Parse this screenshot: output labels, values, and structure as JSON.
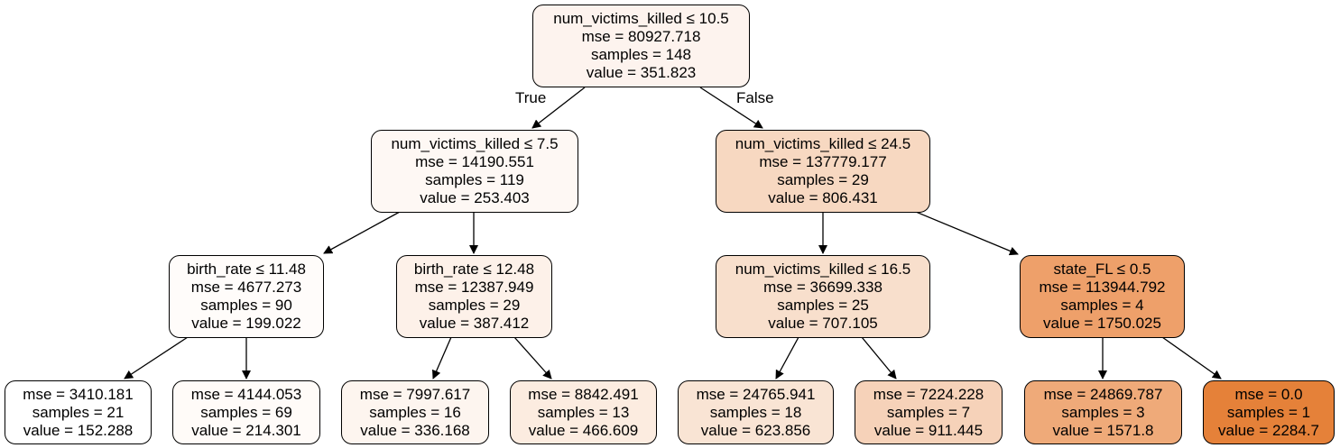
{
  "tree": {
    "nodes": {
      "n0": {
        "split": "num_victims_killed ≤ 10.5",
        "mse": "mse = 80927.718",
        "samples": "samples = 148",
        "value": "value = 351.823",
        "fill": "#fdf3ee"
      },
      "n1": {
        "split": "num_victims_killed ≤ 7.5",
        "mse": "mse = 14190.551",
        "samples": "samples = 119",
        "value": "value = 253.403",
        "fill": "#fef8f4"
      },
      "n2": {
        "split": "num_victims_killed ≤ 24.5",
        "mse": "mse = 137779.177",
        "samples": "samples = 29",
        "value": "value = 806.431",
        "fill": "#f7d8c1"
      },
      "n3": {
        "split": "birth_rate ≤ 11.48",
        "mse": "mse = 4677.273",
        "samples": "samples = 90",
        "value": "value = 199.022",
        "fill": "#fffcfa"
      },
      "n4": {
        "split": "birth_rate ≤ 12.48",
        "mse": "mse = 12387.949",
        "samples": "samples = 29",
        "value": "value = 387.412",
        "fill": "#fdf1e9"
      },
      "n5": {
        "split": "num_victims_killed ≤ 16.5",
        "mse": "mse = 36699.338",
        "samples": "samples = 25",
        "value": "value = 707.105",
        "fill": "#f8dfcc"
      },
      "n6": {
        "split": "state_FL ≤ 0.5",
        "mse": "mse = 113944.792",
        "samples": "samples = 4",
        "value": "value = 1750.025",
        "fill": "#eea06a"
      },
      "n7": {
        "split": "",
        "mse": "mse = 3410.181",
        "samples": "samples = 21",
        "value": "value = 152.288",
        "fill": "#ffffff"
      },
      "n8": {
        "split": "",
        "mse": "mse = 4144.053",
        "samples": "samples = 69",
        "value": "value = 214.301",
        "fill": "#fffbf8"
      },
      "n9": {
        "split": "",
        "mse": "mse = 7997.617",
        "samples": "samples = 16",
        "value": "value = 336.168",
        "fill": "#fdf5ef"
      },
      "n10": {
        "split": "",
        "mse": "mse = 8842.491",
        "samples": "samples = 13",
        "value": "value = 466.609",
        "fill": "#fcece0"
      },
      "n11": {
        "split": "",
        "mse": "mse = 24765.941",
        "samples": "samples = 18",
        "value": "value = 623.856",
        "fill": "#f9e4d4"
      },
      "n12": {
        "split": "",
        "mse": "mse = 7224.228",
        "samples": "samples = 7",
        "value": "value = 911.445",
        "fill": "#f6d2b9"
      },
      "n13": {
        "split": "",
        "mse": "mse = 24869.787",
        "samples": "samples = 3",
        "value": "value = 1571.8",
        "fill": "#efaa79"
      },
      "n14": {
        "split": "",
        "mse": "mse = 0.0",
        "samples": "samples = 1",
        "value": "value = 2284.7",
        "fill": "#e58139"
      }
    },
    "edge_labels": {
      "true_label": "True",
      "false_label": "False"
    }
  }
}
